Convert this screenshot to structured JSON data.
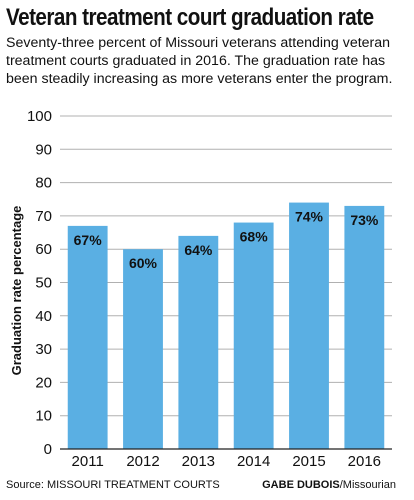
{
  "title": "Veteran treatment court graduation rate",
  "subtitle": "Seventy-three percent of Missouri veterans attending veteran treatment courts graduated in 2016. The graduation rate has been steadily increasing as more veterans enter the program.",
  "footer": {
    "source": "Source: MISSOURI TREATMENT COURTS",
    "credit_name": "GABE DUBOIS",
    "credit_org": "/Missourian"
  },
  "colors": {
    "bar": "#5aafe3",
    "grid": "#b0b0b0",
    "text": "#111111"
  },
  "chart_data": {
    "type": "bar",
    "title": "Veteran treatment court graduation rate",
    "xlabel": "",
    "ylabel": "Graduation rate percentage",
    "categories": [
      "2011",
      "2012",
      "2013",
      "2014",
      "2015",
      "2016"
    ],
    "values": [
      67,
      60,
      64,
      68,
      74,
      73
    ],
    "data_labels": [
      "67%",
      "60%",
      "64%",
      "68%",
      "74%",
      "73%"
    ],
    "ylim": [
      0,
      100
    ],
    "yticks": [
      0,
      10,
      20,
      30,
      40,
      50,
      60,
      70,
      80,
      90,
      100
    ],
    "grid": true,
    "legend": "none"
  }
}
